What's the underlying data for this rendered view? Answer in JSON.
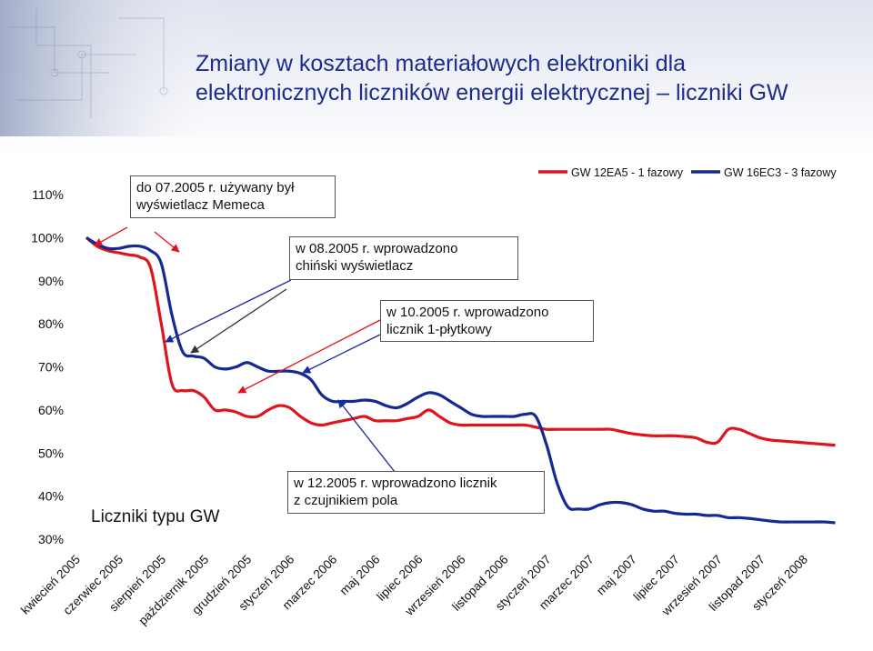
{
  "slide": {
    "title_line1": "Zmiany w kosztach materiałowych elektroniki dla",
    "title_line2": "elektronicznych liczników energii elektrycznej – liczniki GW",
    "accent_color": "#1c2d8c"
  },
  "annotations": {
    "a1": [
      "do 07.2005 r. używany był",
      "wyświetlacz Memeca"
    ],
    "a2": [
      "w 08.2005 r. wprowadzono",
      "chiński wyświetlacz"
    ],
    "a3": [
      "w 10.2005 r. wprowadzono",
      "licznik 1-płytkowy"
    ],
    "a4": [
      "w 12.2005 r. wprowadzono licznik",
      "z czujnikiem pola"
    ],
    "box_label": "Liczniki typu GW"
  },
  "chart_data": {
    "type": "line",
    "yticks": [
      "110%",
      "100%",
      "90%",
      "80%",
      "70%",
      "60%",
      "50%",
      "40%",
      "30%"
    ],
    "ytick_values": [
      110,
      100,
      90,
      80,
      70,
      60,
      50,
      40,
      30
    ],
    "ylim": [
      30,
      110
    ],
    "xlim": [
      0,
      34
    ],
    "xticks": [
      "kwiecień 2005",
      "czerwiec 2005",
      "sierpień 2005",
      "październik 2005",
      "grudzień 2005",
      "styczeń 2006",
      "marzec 2006",
      "maj 2006",
      "lipiec 2006",
      "wrzesień 2006",
      "listopad 2006",
      "styczeń 2007",
      "marzec 2007",
      "maj 2007",
      "lipiec 2007",
      "wrzesień 2007",
      "listopad 2007",
      "styczeń 2008"
    ],
    "xtick_values": [
      0,
      2,
      4,
      6,
      8,
      10,
      12,
      14,
      16,
      18,
      20,
      22,
      24,
      26,
      28,
      30,
      32,
      34
    ],
    "legend_position": "top-right",
    "series": [
      {
        "name": "GW 12EA5 - 1 fazowy",
        "color": "#e0141e",
        "x": [
          0,
          0.5,
          1,
          1.5,
          2,
          2.5,
          3,
          3.5,
          4,
          4.5,
          5,
          5.5,
          6,
          6.5,
          7,
          7.5,
          8,
          8.5,
          9,
          9.5,
          10,
          10.5,
          11,
          11.5,
          12,
          12.5,
          13,
          13.5,
          14,
          14.5,
          15,
          15.5,
          16,
          16.5,
          17,
          17.5,
          18,
          18.5,
          19,
          19.5,
          20,
          20.5,
          21,
          21.5,
          22,
          22.5,
          23,
          23.5,
          24,
          24.5,
          25,
          25.5,
          26,
          26.5,
          27,
          27.5,
          28,
          28.5,
          29,
          29.5,
          30,
          30.5,
          31,
          31.5,
          32,
          32.5,
          33,
          33.5,
          34,
          34.5,
          35
        ],
        "values": [
          100,
          98,
          97,
          96.5,
          96,
          95.5,
          93,
          80,
          66,
          64.5,
          64.5,
          63,
          60,
          60,
          59.5,
          58.5,
          58.5,
          60,
          61,
          60.5,
          58.5,
          57,
          56.5,
          57,
          57.5,
          58,
          58.5,
          57.5,
          57.5,
          57.5,
          58,
          58.5,
          60,
          58.5,
          57,
          56.5,
          56.5,
          56.5,
          56.5,
          56.5,
          56.5,
          56.5,
          56,
          55.5,
          55.5,
          55.5,
          55.5,
          55.5,
          55.5,
          55.5,
          55,
          54.5,
          54.2,
          54,
          54,
          54,
          53.8,
          53.5,
          52.5,
          52.5,
          55.5,
          55.5,
          54.5,
          53.5,
          53,
          52.8,
          52.6,
          52.4,
          52.2,
          52,
          51.8
        ]
      },
      {
        "name": "GW 16EC3 - 3 fazowy",
        "color": "#142896",
        "x": [
          0,
          0.5,
          1,
          1.5,
          2,
          2.5,
          3,
          3.5,
          4,
          4.5,
          5,
          5.5,
          6,
          6.5,
          7,
          7.5,
          8,
          8.5,
          9,
          9.5,
          10,
          10.5,
          11,
          11.5,
          12,
          12.5,
          13,
          13.5,
          14,
          14.5,
          15,
          15.5,
          16,
          16.5,
          17,
          17.5,
          18,
          18.5,
          19,
          19.5,
          20,
          20.5,
          21,
          21.5,
          22,
          22.5,
          23,
          23.5,
          24,
          24.5,
          25,
          25.5,
          26,
          26.5,
          27,
          27.5,
          28,
          28.5,
          29,
          29.5,
          30,
          30.5,
          31,
          31.5,
          32,
          32.5,
          33,
          33.5,
          34,
          34.5,
          35
        ],
        "values": [
          100,
          98.5,
          97.5,
          97.5,
          98,
          98,
          97,
          94,
          82,
          73.5,
          72.5,
          72,
          70,
          69.5,
          70,
          71,
          70,
          69,
          69,
          69,
          68.5,
          67,
          63.5,
          62,
          62,
          62,
          62.3,
          62,
          61,
          60.5,
          61.5,
          63,
          64,
          63.5,
          62,
          60.5,
          59,
          58.5,
          58.5,
          58.5,
          58.5,
          59,
          58.5,
          52,
          43,
          37.5,
          37,
          37,
          38,
          38.5,
          38.5,
          38,
          37,
          36.5,
          36.5,
          36,
          35.8,
          35.8,
          35.5,
          35.5,
          35,
          35,
          34.8,
          34.5,
          34.2,
          34,
          34,
          34,
          34,
          34,
          33.8
        ]
      }
    ]
  }
}
